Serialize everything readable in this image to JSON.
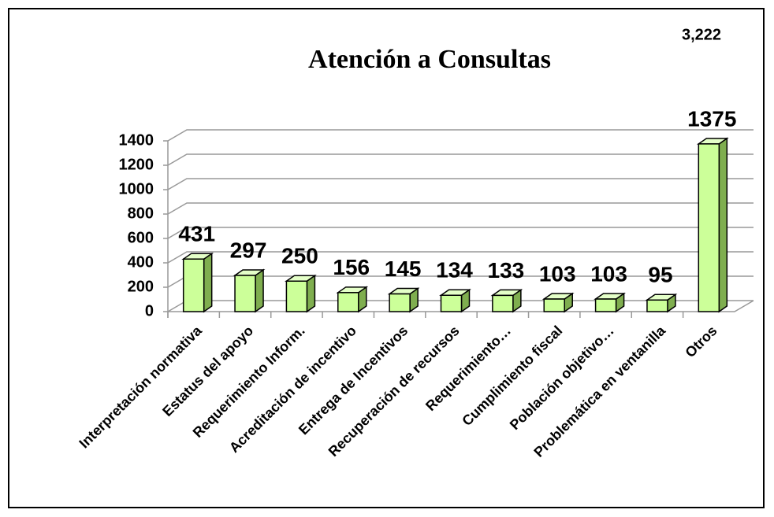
{
  "chart_data": {
    "type": "bar3d",
    "title": "Atención a Consultas",
    "annotation": "3,222",
    "categories": [
      "Interpretación normativa",
      "Estatus del apoyo",
      "Requerimiento Inform.",
      "Acreditación de incentivo",
      "Entrega de Incentivos",
      "Recuperación de recursos",
      "Requerimiento…",
      "Cumplimiento fiscal",
      "Población objetivo…",
      "Problemática en ventanilla",
      "Otros"
    ],
    "values": [
      431,
      297,
      250,
      156,
      145,
      134,
      133,
      103,
      103,
      95,
      1375
    ],
    "color": "#ccff99",
    "ylim": [
      0,
      1400
    ],
    "yticks": [
      0,
      200,
      400,
      600,
      800,
      1000,
      1200,
      1400
    ],
    "grid": true
  }
}
